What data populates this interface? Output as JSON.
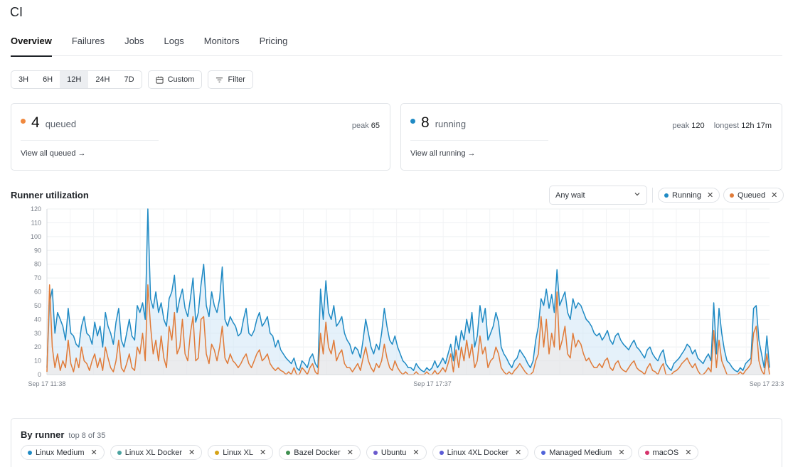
{
  "app": {
    "title": "CI"
  },
  "tabs": [
    {
      "label": "Overview",
      "active": true
    },
    {
      "label": "Failures"
    },
    {
      "label": "Jobs"
    },
    {
      "label": "Logs"
    },
    {
      "label": "Monitors"
    },
    {
      "label": "Pricing"
    }
  ],
  "toolbar": {
    "ranges": [
      "3H",
      "6H",
      "12H",
      "24H",
      "7D"
    ],
    "active_range": "12H",
    "custom_label": "Custom",
    "filter_label": "Filter"
  },
  "queued": {
    "count": "4",
    "label": "queued",
    "peak_label": "peak",
    "peak_value": "65",
    "link": "View all queued →",
    "color": "#f0883e"
  },
  "running": {
    "count": "8",
    "label": "running",
    "peak_label": "peak",
    "peak_value": "120",
    "longest_label": "longest",
    "longest_value": "12h 17m",
    "link": "View all running →",
    "color": "#1f8ac4"
  },
  "utilization": {
    "title": "Runner utilization",
    "wait_select": "Any wait",
    "chips": [
      {
        "label": "Running",
        "color": "#1f8ac4"
      },
      {
        "label": "Queued",
        "color": "#e07b39"
      }
    ]
  },
  "chart_data": {
    "type": "line",
    "ylim": [
      0,
      120
    ],
    "yticks": [
      0,
      10,
      20,
      30,
      40,
      50,
      60,
      70,
      80,
      90,
      100,
      110,
      120
    ],
    "xtick_labels": [
      "Sep 17 11:38",
      "Sep 17 17:37",
      "Sep 17 23:3"
    ],
    "series": [
      {
        "name": "Running",
        "color": "#1f8ac4",
        "values": [
          5,
          52,
          62,
          30,
          45,
          40,
          35,
          25,
          48,
          30,
          28,
          22,
          20,
          35,
          42,
          30,
          28,
          22,
          38,
          28,
          35,
          20,
          45,
          35,
          30,
          22,
          38,
          48,
          25,
          20,
          30,
          40,
          28,
          25,
          50,
          45,
          52,
          40,
          120,
          55,
          48,
          60,
          45,
          52,
          40,
          35,
          55,
          60,
          72,
          45,
          55,
          62,
          48,
          42,
          55,
          70,
          38,
          45,
          65,
          80,
          50,
          42,
          60,
          50,
          45,
          55,
          78,
          40,
          35,
          42,
          38,
          35,
          28,
          30,
          40,
          48,
          30,
          28,
          32,
          40,
          45,
          35,
          38,
          42,
          30,
          28,
          20,
          25,
          18,
          15,
          12,
          10,
          8,
          12,
          5,
          3,
          10,
          8,
          5,
          12,
          15,
          8,
          5,
          62,
          40,
          68,
          45,
          40,
          50,
          35,
          38,
          42,
          30,
          25,
          22,
          15,
          20,
          18,
          12,
          25,
          40,
          30,
          20,
          15,
          22,
          18,
          30,
          48,
          35,
          25,
          22,
          28,
          20,
          15,
          10,
          8,
          5,
          5,
          3,
          8,
          5,
          3,
          2,
          5,
          3,
          5,
          10,
          5,
          8,
          12,
          8,
          15,
          22,
          10,
          28,
          18,
          32,
          25,
          40,
          30,
          45,
          20,
          28,
          50,
          38,
          48,
          25,
          30,
          35,
          45,
          38,
          20,
          15,
          12,
          8,
          5,
          10,
          12,
          18,
          15,
          12,
          8,
          5,
          10,
          25,
          35,
          55,
          50,
          62,
          48,
          58,
          45,
          76,
          50,
          55,
          60,
          45,
          40,
          55,
          48,
          52,
          50,
          45,
          40,
          38,
          35,
          30,
          28,
          30,
          25,
          28,
          32,
          25,
          22,
          28,
          30,
          25,
          22,
          20,
          18,
          22,
          25,
          20,
          18,
          15,
          12,
          18,
          20,
          15,
          12,
          10,
          15,
          18,
          8,
          5,
          3,
          8,
          10,
          12,
          15,
          18,
          22,
          20,
          15,
          18,
          12,
          10,
          8,
          12,
          15,
          10,
          52,
          15,
          48,
          30,
          18,
          10,
          8,
          5,
          3,
          2,
          5,
          3,
          8,
          10,
          12,
          48,
          50,
          25,
          15,
          5,
          28,
          5
        ],
        "fill": "#cfe6f5"
      },
      {
        "name": "Queued",
        "color": "#e07b39",
        "values": [
          2,
          65,
          20,
          5,
          15,
          3,
          10,
          5,
          25,
          8,
          2,
          12,
          5,
          20,
          10,
          8,
          3,
          10,
          15,
          5,
          12,
          3,
          20,
          12,
          5,
          2,
          10,
          25,
          5,
          2,
          8,
          15,
          5,
          3,
          20,
          15,
          30,
          10,
          65,
          35,
          15,
          25,
          10,
          28,
          12,
          5,
          35,
          25,
          45,
          15,
          20,
          40,
          15,
          10,
          30,
          42,
          10,
          12,
          40,
          42,
          15,
          8,
          22,
          18,
          10,
          20,
          35,
          12,
          8,
          15,
          10,
          8,
          5,
          8,
          12,
          15,
          8,
          5,
          10,
          15,
          18,
          10,
          12,
          15,
          8,
          5,
          3,
          5,
          3,
          2,
          0,
          2,
          0,
          5,
          0,
          0,
          5,
          3,
          0,
          5,
          8,
          2,
          0,
          30,
          15,
          38,
          20,
          15,
          25,
          10,
          15,
          18,
          8,
          5,
          5,
          2,
          5,
          8,
          3,
          12,
          20,
          10,
          5,
          2,
          8,
          5,
          10,
          22,
          12,
          5,
          3,
          10,
          5,
          2,
          0,
          2,
          0,
          0,
          0,
          2,
          0,
          0,
          0,
          2,
          0,
          0,
          3,
          0,
          2,
          5,
          2,
          8,
          15,
          2,
          18,
          5,
          20,
          10,
          25,
          12,
          22,
          5,
          10,
          28,
          15,
          20,
          5,
          10,
          12,
          20,
          15,
          5,
          2,
          0,
          2,
          0,
          3,
          5,
          8,
          5,
          2,
          0,
          0,
          2,
          10,
          15,
          42,
          20,
          40,
          15,
          30,
          20,
          60,
          18,
          25,
          35,
          15,
          12,
          30,
          20,
          25,
          22,
          15,
          10,
          12,
          8,
          5,
          5,
          8,
          5,
          10,
          12,
          5,
          3,
          8,
          10,
          5,
          3,
          2,
          5,
          8,
          10,
          5,
          3,
          2,
          0,
          5,
          8,
          3,
          2,
          0,
          5,
          8,
          0,
          0,
          0,
          2,
          3,
          5,
          8,
          10,
          12,
          8,
          5,
          8,
          3,
          0,
          0,
          2,
          5,
          2,
          32,
          5,
          25,
          10,
          5,
          0,
          0,
          0,
          0,
          0,
          2,
          0,
          3,
          5,
          8,
          30,
          35,
          10,
          3,
          0,
          15,
          0
        ]
      }
    ]
  },
  "by_runner": {
    "title": "By runner",
    "subtitle": "top 8 of 35",
    "runners": [
      {
        "label": "Linux Medium",
        "color": "#1f8ac4"
      },
      {
        "label": "Linux XL Docker",
        "color": "#4aa3a0"
      },
      {
        "label": "Linux XL",
        "color": "#d6a316"
      },
      {
        "label": "Bazel Docker",
        "color": "#3f8f4f"
      },
      {
        "label": "Ubuntu",
        "color": "#6a5acd"
      },
      {
        "label": "Linux 4XL Docker",
        "color": "#5b5bd6"
      },
      {
        "label": "Managed Medium",
        "color": "#4f63d9"
      },
      {
        "label": "macOS",
        "color": "#d6336c"
      }
    ]
  }
}
